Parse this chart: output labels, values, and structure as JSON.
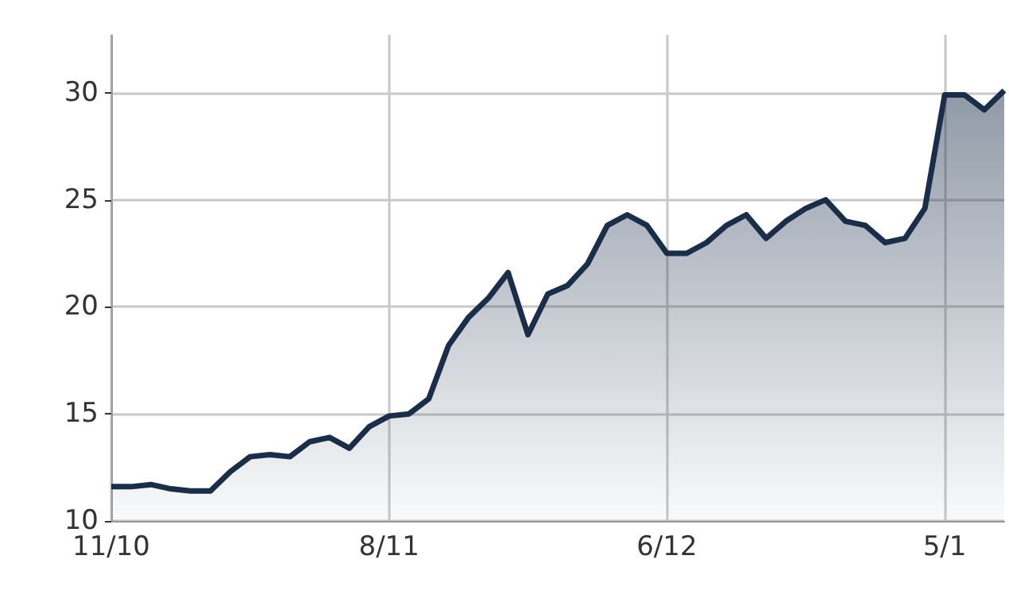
{
  "chart_data": {
    "type": "area",
    "categories": [
      "11/10",
      null,
      null,
      null,
      null,
      null,
      null,
      null,
      null,
      null,
      null,
      null,
      null,
      null,
      "8/11",
      null,
      null,
      null,
      null,
      null,
      null,
      null,
      null,
      null,
      null,
      null,
      null,
      null,
      "6/12",
      null,
      null,
      null,
      null,
      null,
      null,
      null,
      null,
      null,
      null,
      null,
      null,
      null,
      "5/1",
      null,
      null,
      null
    ],
    "series": [
      {
        "color": "#1a2e4a",
        "values": [
          11.6,
          11.6,
          11.7,
          11.5,
          11.4,
          11.4,
          12.3,
          13.0,
          13.1,
          13.0,
          13.7,
          13.9,
          13.4,
          14.4,
          14.9,
          15.0,
          15.7,
          18.2,
          19.5,
          20.4,
          21.6,
          18.7,
          20.6,
          21.0,
          22.0,
          23.8,
          24.3,
          23.8,
          22.5,
          22.5,
          23.0,
          23.8,
          24.3,
          23.2,
          24.0,
          24.6,
          25.0,
          24.0,
          23.8,
          23.0,
          23.2,
          24.6,
          29.9,
          29.9,
          29.2,
          30.1
        ]
      }
    ],
    "ylim": [
      10,
      32.7
    ],
    "yticks": [
      10,
      15,
      20,
      25,
      30
    ],
    "grid": true
  }
}
